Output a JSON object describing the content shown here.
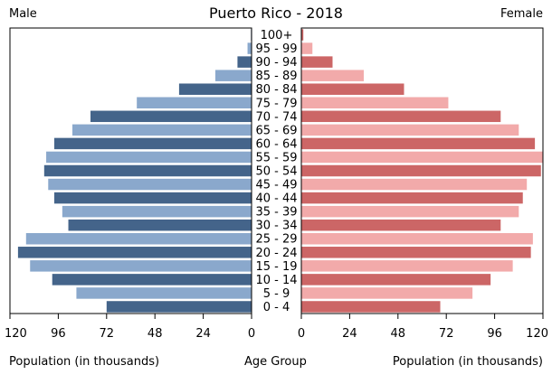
{
  "header": {
    "title": "Puerto Rico - 2018",
    "left_label": "Male",
    "right_label": "Female"
  },
  "footer": {
    "left_axis_label": "Population (in thousands)",
    "center_label": "Age Group",
    "right_axis_label": "Population (in thousands)"
  },
  "colors": {
    "male_dark": "#44648a",
    "male_light": "#8aa8cc",
    "female_dark": "#cc6666",
    "female_light": "#f2aaaa",
    "frame": "#000000"
  },
  "chart_data": {
    "type": "bar",
    "orientation": "horizontal",
    "subtype": "population-pyramid",
    "title": "Puerto Rico - 2018",
    "categories": [
      "100+",
      "95 - 99",
      "90 - 94",
      "85 - 89",
      "80 - 84",
      "75 - 79",
      "70 - 74",
      "65 - 69",
      "60 - 64",
      "55 - 59",
      "50 - 54",
      "45 - 49",
      "40 - 44",
      "35 - 39",
      "30 - 34",
      "25 - 29",
      "20 - 24",
      "15 - 19",
      "10 - 14",
      "5 - 9",
      "0 - 4"
    ],
    "series": [
      {
        "name": "Male",
        "side": "left",
        "values": [
          0.3,
          2,
          7,
          18,
          36,
          57,
          80,
          89,
          98,
          102,
          103,
          101,
          98,
          94,
          91,
          112,
          116,
          110,
          99,
          87,
          72
        ]
      },
      {
        "name": "Female",
        "side": "right",
        "values": [
          1,
          5.5,
          15.5,
          31,
          51,
          73,
          99,
          108,
          116,
          120,
          119,
          112,
          110,
          108,
          99,
          115,
          114,
          105,
          94,
          85,
          69
        ]
      }
    ],
    "x_ticks": [
      120,
      96,
      72,
      48,
      24,
      0
    ],
    "xlim": [
      0,
      120
    ],
    "xlabel": "Population (in thousands)",
    "center_label": "Age Group",
    "grid": false
  }
}
